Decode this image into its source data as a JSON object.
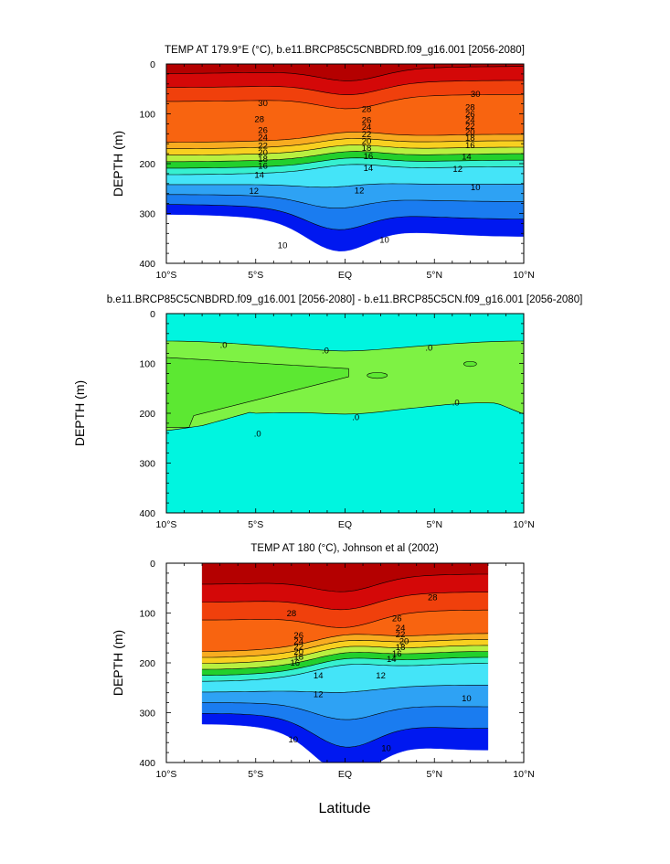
{
  "figure": {
    "xlabel": "Latitude"
  },
  "colors": {
    "palette": [
      "#0018f0",
      "#0e58ec",
      "#1a7cf0",
      "#2ea2f4",
      "#38c6f8",
      "#44e4f8",
      "#36f0d0",
      "#7ef244",
      "#22d02c",
      "#b8f040",
      "#f8f838",
      "#f8d020",
      "#f8ac20",
      "#f88818",
      "#f86410",
      "#f0400c",
      "#e81c0a",
      "#d40808",
      "#b40000"
    ],
    "diff_positive": "#7ef244",
    "diff_negative": "#00f5e0",
    "missing": "#ffffff"
  },
  "chart_data": [
    {
      "type": "contour",
      "title": "TEMP AT 179.9°E (°C), b.e11.BRCP85C5CNBDRD.f09_g16.001 [2056-2080]",
      "ylabel": "DEPTH (m)",
      "xlabel": "",
      "xlim": [
        -10,
        10
      ],
      "ylim": [
        400,
        0
      ],
      "x_ticks": [
        -10,
        -5,
        0,
        5,
        10
      ],
      "x_tick_labels": [
        "10°S",
        "5°S",
        "EQ",
        "5°N",
        "10°N"
      ],
      "y_ticks": [
        0,
        100,
        200,
        300,
        400
      ],
      "y_tick_labels": [
        "0",
        "100",
        "200",
        "300",
        "400"
      ],
      "x_labels": [
        "10°S",
        "5°S",
        "EQ",
        "5°N",
        "10°N"
      ],
      "y_labels": [
        "0",
        "100",
        "200",
        "300",
        "400"
      ],
      "contour_interval": 2,
      "level_range": [
        8,
        30
      ],
      "grid": false,
      "contour_labels": [
        {
          "text": "30",
          "lat": -4.6,
          "depth": 78
        },
        {
          "text": "28",
          "lat": -4.8,
          "depth": 110
        },
        {
          "text": "26",
          "lat": -4.6,
          "depth": 132
        },
        {
          "text": "24",
          "lat": -4.6,
          "depth": 147
        },
        {
          "text": "22",
          "lat": -4.6,
          "depth": 163
        },
        {
          "text": "20",
          "lat": -4.6,
          "depth": 177
        },
        {
          "text": "18",
          "lat": -4.6,
          "depth": 190
        },
        {
          "text": "16",
          "lat": -4.6,
          "depth": 204
        },
        {
          "text": "14",
          "lat": -4.8,
          "depth": 222
        },
        {
          "text": "12",
          "lat": -5.1,
          "depth": 254
        },
        {
          "text": "10",
          "lat": -3.5,
          "depth": 363
        },
        {
          "text": "28",
          "lat": 1.2,
          "depth": 90
        },
        {
          "text": "26",
          "lat": 1.2,
          "depth": 112
        },
        {
          "text": "24",
          "lat": 1.2,
          "depth": 126
        },
        {
          "text": "22",
          "lat": 1.2,
          "depth": 140
        },
        {
          "text": "20",
          "lat": 1.2,
          "depth": 154
        },
        {
          "text": "18",
          "lat": 1.2,
          "depth": 168
        },
        {
          "text": "16",
          "lat": 1.3,
          "depth": 184
        },
        {
          "text": "14",
          "lat": 1.3,
          "depth": 208
        },
        {
          "text": "12",
          "lat": 0.8,
          "depth": 253
        },
        {
          "text": "10",
          "lat": 2.2,
          "depth": 352
        },
        {
          "text": "30",
          "lat": 7.3,
          "depth": 60
        },
        {
          "text": "28",
          "lat": 7.0,
          "depth": 86
        },
        {
          "text": "26",
          "lat": 7.0,
          "depth": 100
        },
        {
          "text": "24",
          "lat": 7.0,
          "depth": 112
        },
        {
          "text": "22",
          "lat": 7.0,
          "depth": 124
        },
        {
          "text": "20",
          "lat": 7.0,
          "depth": 136
        },
        {
          "text": "18",
          "lat": 7.0,
          "depth": 148
        },
        {
          "text": "16",
          "lat": 7.0,
          "depth": 162
        },
        {
          "text": "14",
          "lat": 6.8,
          "depth": 185
        },
        {
          "text": "12",
          "lat": 6.3,
          "depth": 210
        },
        {
          "text": "10",
          "lat": 7.3,
          "depth": 247
        }
      ]
    },
    {
      "type": "contour",
      "title": "b.e11.BRCP85C5CNBDRD.f09_g16.001 [2056-2080] - b.e11.BRCP85C5CN.f09_g16.001 [2056-2080]",
      "ylabel": "DEPTH (m)",
      "xlabel": "",
      "xlim": [
        -10,
        10
      ],
      "ylim": [
        400,
        0
      ],
      "x_ticks": [
        -10,
        -5,
        0,
        5,
        10
      ],
      "x_tick_labels": [
        "10°S",
        "5°S",
        "EQ",
        "5°N",
        "10°N"
      ],
      "y_ticks": [
        0,
        100,
        200,
        300,
        400
      ],
      "y_tick_labels": [
        "0",
        "100",
        "200",
        "300",
        "400"
      ],
      "x_labels": [
        "10°S",
        "5°S",
        "EQ",
        "5°N",
        "10°N"
      ],
      "y_labels": [
        "0",
        "100",
        "200",
        "300",
        "400"
      ],
      "contour_levels": [
        0
      ],
      "grid": false,
      "contour_labels": [
        {
          "text": ".0",
          "lat": -6.8,
          "depth": 62
        },
        {
          "text": ".0",
          "lat": -1.1,
          "depth": 73
        },
        {
          "text": ".0",
          "lat": 4.7,
          "depth": 68
        },
        {
          "text": ".0",
          "lat": -4.9,
          "depth": 240
        },
        {
          "text": ".0",
          "lat": 0.6,
          "depth": 207
        },
        {
          "text": ".0",
          "lat": 6.2,
          "depth": 178
        }
      ]
    },
    {
      "type": "contour",
      "title": "TEMP AT 180 (°C), Johnson et al (2002)",
      "ylabel": "DEPTH (m)",
      "xlabel": "Latitude",
      "xlim": [
        -10,
        10
      ],
      "ylim": [
        400,
        0
      ],
      "data_xlim": [
        -8,
        8
      ],
      "data_ylim": [
        0,
        400
      ],
      "x_ticks": [
        -10,
        -5,
        0,
        5,
        10
      ],
      "x_tick_labels": [
        "10°S",
        "5°S",
        "EQ",
        "5°N",
        "10°N"
      ],
      "y_ticks": [
        0,
        100,
        200,
        300,
        400
      ],
      "y_tick_labels": [
        "0",
        "100",
        "200",
        "300",
        "400"
      ],
      "x_labels": [
        "10°S",
        "5°S",
        "EQ",
        "5°N",
        "10°N"
      ],
      "y_labels": [
        "0",
        "100",
        "200",
        "300",
        "400"
      ],
      "contour_interval": 2,
      "level_range": [
        8,
        30
      ],
      "grid": false,
      "contour_labels": [
        {
          "text": "28",
          "lat": -3.0,
          "depth": 100
        },
        {
          "text": "26",
          "lat": -2.6,
          "depth": 144
        },
        {
          "text": "24",
          "lat": -2.6,
          "depth": 156
        },
        {
          "text": "22",
          "lat": -2.6,
          "depth": 167
        },
        {
          "text": "20",
          "lat": -2.6,
          "depth": 177
        },
        {
          "text": "18",
          "lat": -2.6,
          "depth": 187
        },
        {
          "text": "16",
          "lat": -2.8,
          "depth": 199
        },
        {
          "text": "14",
          "lat": -1.5,
          "depth": 225
        },
        {
          "text": "12",
          "lat": -1.5,
          "depth": 262
        },
        {
          "text": "10",
          "lat": -2.9,
          "depth": 353
        },
        {
          "text": "28",
          "lat": 4.9,
          "depth": 68
        },
        {
          "text": "26",
          "lat": 2.9,
          "depth": 110
        },
        {
          "text": "24",
          "lat": 3.1,
          "depth": 129
        },
        {
          "text": "22",
          "lat": 3.1,
          "depth": 142
        },
        {
          "text": "20",
          "lat": 3.3,
          "depth": 156
        },
        {
          "text": "18",
          "lat": 3.1,
          "depth": 168
        },
        {
          "text": "16",
          "lat": 2.9,
          "depth": 181
        },
        {
          "text": "14",
          "lat": 2.6,
          "depth": 192
        },
        {
          "text": "12",
          "lat": 2.0,
          "depth": 225
        },
        {
          "text": "10",
          "lat": 2.3,
          "depth": 371
        },
        {
          "text": "10",
          "lat": 6.8,
          "depth": 271
        }
      ]
    }
  ]
}
